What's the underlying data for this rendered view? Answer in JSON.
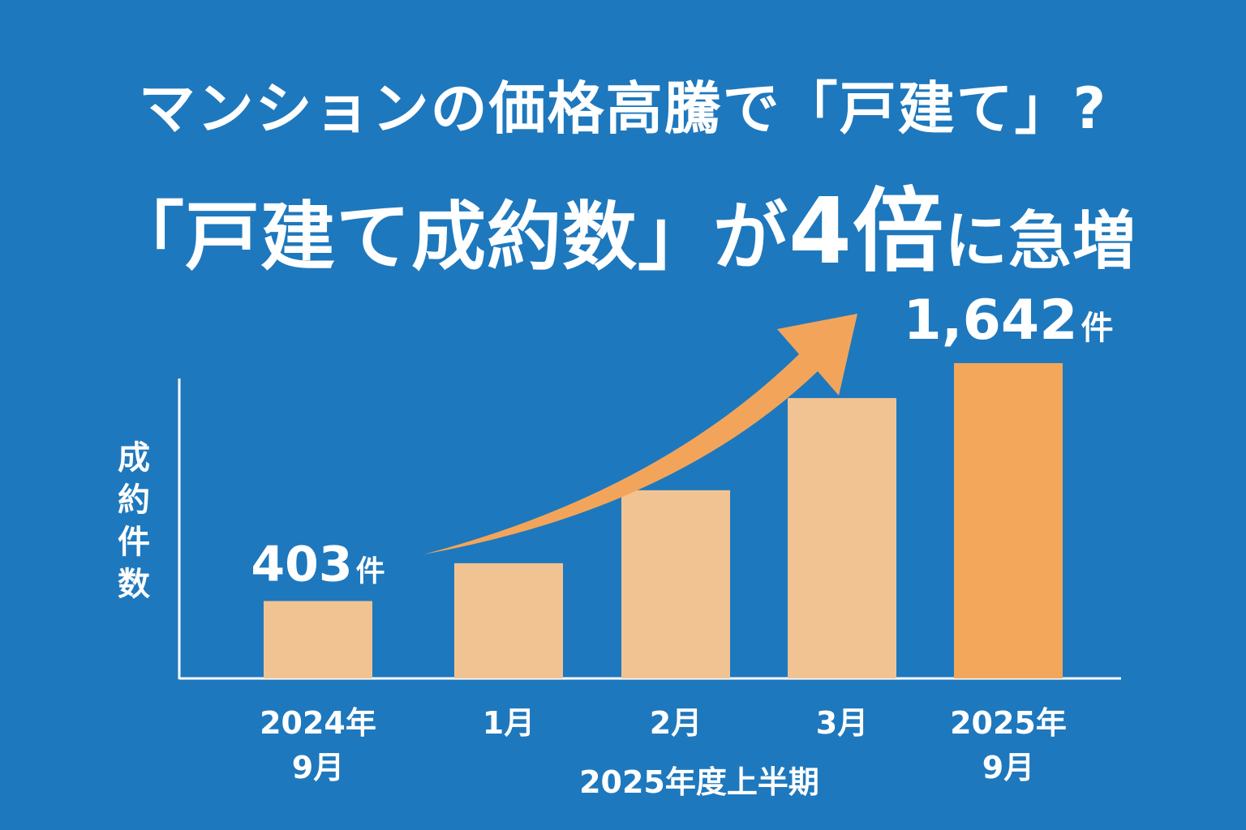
{
  "header": {
    "title_line1": "マンションの価格高騰で「戸建て」?",
    "title_line2_a": "「戸建て成約数」が",
    "title_line2_b": "4倍",
    "title_line2_c": "に急増"
  },
  "colors": {
    "background": "#1e78bd",
    "bar_light": "#f2c392",
    "bar_highlight": "#f2a75a",
    "arrow": "#f2a55a",
    "text": "#ffffff"
  },
  "chart_data": {
    "type": "bar",
    "title": "",
    "ylabel": "成約件数",
    "xlabel": "2025年度上半期",
    "ylim": [
      0,
      2000
    ],
    "grid": false,
    "categories": [
      [
        "2024年",
        "9月"
      ],
      [
        "1月"
      ],
      [
        "2月"
      ],
      [
        "3月"
      ],
      [
        "2025年",
        "9月"
      ]
    ],
    "values": [
      403,
      600,
      980,
      1460,
      1642
    ],
    "highlight_index": 4,
    "annotations": [
      {
        "index": 0,
        "value_text": "403",
        "unit": "件"
      },
      {
        "index": 4,
        "value_text": "1,642",
        "unit": "件"
      }
    ],
    "trend_arrow": {
      "from_index": 0,
      "to_index": 4
    }
  }
}
